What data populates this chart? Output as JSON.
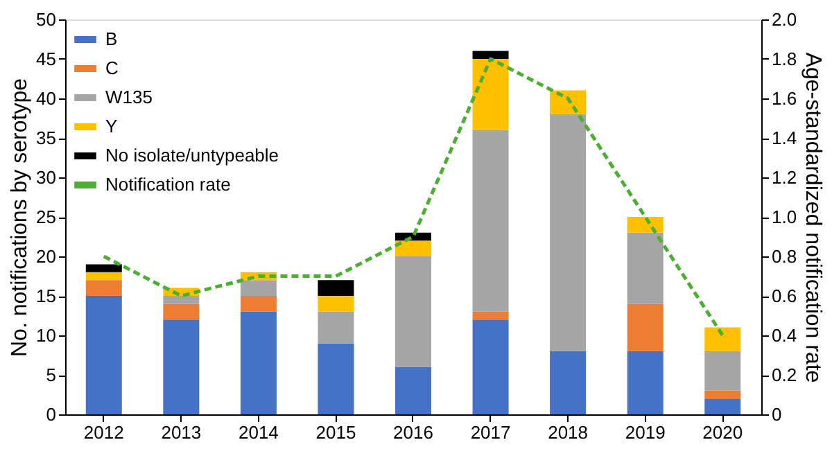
{
  "chart_data": {
    "type": "bar",
    "stacked": true,
    "xlabel": null,
    "ylabel": "No. notifications by serotype",
    "y2label": "Age-standardized notification rate",
    "categories": [
      "2012",
      "2013",
      "2014",
      "2015",
      "2016",
      "2017",
      "2018",
      "2019",
      "2020"
    ],
    "series": [
      {
        "name": "B",
        "color": "#4472c4",
        "values": [
          15,
          12,
          13,
          9,
          6,
          12,
          8,
          8,
          2
        ]
      },
      {
        "name": "C",
        "color": "#ed7d31",
        "values": [
          2,
          2,
          2,
          0,
          0,
          1,
          0,
          6,
          1
        ]
      },
      {
        "name": "W135",
        "color": "#a5a5a5",
        "values": [
          0,
          1,
          2,
          4,
          14,
          23,
          30,
          9,
          5
        ]
      },
      {
        "name": "Y",
        "color": "#ffc000",
        "values": [
          1,
          1,
          1,
          2,
          2,
          9,
          3,
          2,
          3
        ]
      },
      {
        "name": "No isolate/untypeable",
        "color": "#000000",
        "values": [
          1,
          0,
          0,
          2,
          1,
          1,
          0,
          0,
          0
        ]
      },
      {
        "name": "Notification rate",
        "type": "line",
        "axis": "y2",
        "line_style": "dashed",
        "color": "#4caf32",
        "values": [
          0.8,
          0.6,
          0.7,
          0.7,
          0.9,
          1.8,
          1.6,
          1.0,
          0.4
        ]
      }
    ],
    "ylim": [
      0,
      50
    ],
    "yticks": [
      0,
      5,
      10,
      15,
      20,
      25,
      30,
      35,
      40,
      45,
      50
    ],
    "y2lim": [
      0,
      2.0
    ],
    "y2ticks": [
      0,
      {
        "value": 0.2,
        "label": "0.2"
      },
      {
        "value": 0.4,
        "label": "0.4"
      },
      {
        "value": 0.6,
        "label": "0.6"
      },
      {
        "value": 0.8,
        "label": "0.8"
      },
      {
        "value": 1.0,
        "label": "1.0"
      },
      {
        "value": 1.2,
        "label": "1.2"
      },
      {
        "value": 1.4,
        "label": "1.4"
      },
      {
        "value": 1.6,
        "label": "1.6"
      },
      {
        "value": 1.8,
        "label": "1.8"
      },
      {
        "value": 2.0,
        "label": "2.0"
      }
    ],
    "legend": "top left",
    "grid": false
  }
}
